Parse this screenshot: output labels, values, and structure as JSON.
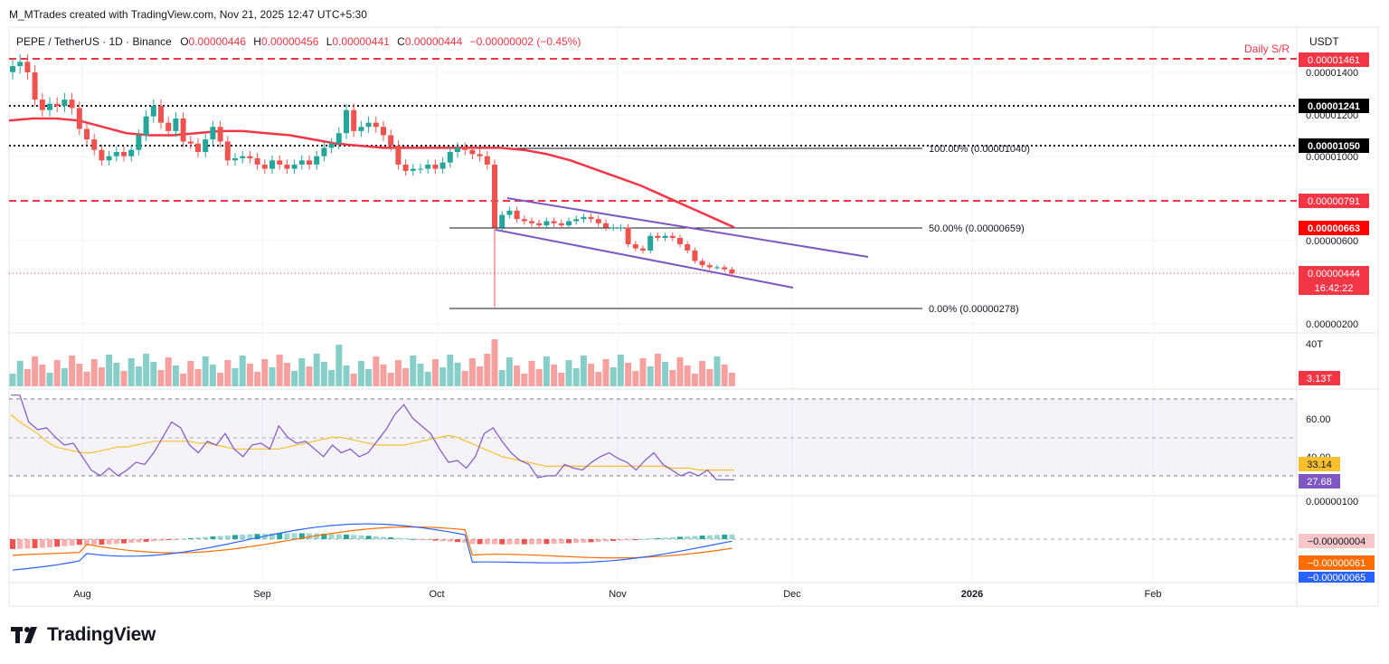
{
  "header": {
    "credit": "M_MTrades created with TradingView.com, Nov 21, 2025 12:47 UTC+5:30",
    "symbol": "PEPE / TetherUS · 1D · Binance",
    "o_label": "O",
    "o_value": "0.00000446",
    "h_label": "H",
    "h_value": "0.00000456",
    "l_label": "L",
    "l_value": "0.00000441",
    "c_label": "C",
    "c_value": "0.00000444",
    "change": "−0.00000002 (−0.45%)",
    "currency": "USDT"
  },
  "chart_data": {
    "type": "candlestick",
    "symbol": "PEPE / TetherUS",
    "interval": "1D",
    "exchange": "Binance",
    "time_axis": [
      "Aug",
      "Sep",
      "Oct",
      "Nov",
      "Dec",
      "2026",
      "Feb"
    ],
    "price_axis_ticks": [
      "0.00001400",
      "0.00001200",
      "0.00001000",
      "0.00000600",
      "0.00000200"
    ],
    "close_series_approx": [
      1.43e-05,
      1.45e-05,
      1.4e-05,
      1.27e-05,
      1.22e-05,
      1.25e-05,
      1.24e-05,
      1.27e-05,
      1.23e-05,
      1.13e-05,
      1.08e-05,
      1.03e-05,
      9.8e-06,
      1e-05,
      1.02e-05,
      1e-05,
      1.03e-05,
      1.1e-05,
      1.19e-05,
      1.24e-05,
      1.16e-05,
      1.12e-05,
      1.18e-05,
      1.07e-05,
      1.06e-05,
      1.02e-05,
      1.08e-05,
      1.14e-05,
      1.07e-05,
      9.8e-06,
      9.9e-06,
      1e-05,
      9.9e-06,
      9.6e-06,
      9.4e-06,
      9.8e-06,
      9.6e-06,
      9.4e-06,
      9.6e-06,
      9.8e-06,
      9.6e-06,
      1e-05,
      1.04e-05,
      1.06e-05,
      1.11e-05,
      1.22e-05,
      1.12e-05,
      1.14e-05,
      1.16e-05,
      1.14e-05,
      1.1e-05,
      1.05e-05,
      9.6e-06,
      9.3e-06,
      9.4e-06,
      9.4e-06,
      9.6e-06,
      9.4e-06,
      9.7e-06,
      1.02e-05,
      1.04e-05,
      1.03e-05,
      1.01e-05,
      1e-05,
      9.6e-06,
      6.6e-06,
      7.2e-06,
      7.4e-06,
      7e-06,
      6.9e-06,
      6.8e-06,
      6.7e-06,
      6.9e-06,
      6.8e-06,
      6.7e-06,
      6.9e-06,
      7e-06,
      7.1e-06,
      7e-06,
      6.8e-06,
      6.6e-06,
      6.6e-06,
      6.6e-06,
      5.8e-06,
      5.6e-06,
      5.5e-06,
      6.2e-06,
      6.1e-06,
      6.2e-06,
      6.1e-06,
      5.8e-06,
      5.5e-06,
      5e-06,
      4.8e-06,
      4.7e-06,
      4.7e-06,
      4.6e-06,
      4.4e-06
    ],
    "moving_average_approx": [
      1.17e-05,
      1.18e-05,
      1.18e-05,
      1.17e-05,
      1.14e-05,
      1.11e-05,
      1.1e-05,
      1.1e-05,
      1.11e-05,
      1.12e-05,
      1.12e-05,
      1.11e-05,
      1.1e-05,
      1.08e-05,
      1.06e-05,
      1.05e-05,
      1.04e-05,
      1.04e-05,
      1.04e-05,
      1.04e-05,
      1.04e-05,
      1.04e-05,
      1.03e-05,
      1.01e-05,
      9.8e-06,
      9.4e-06,
      9e-06,
      8.6e-06,
      8.1e-06,
      7.6e-06,
      7.1e-06,
      6.6e-06
    ],
    "horizontal_levels": [
      {
        "label": "Daily S/R",
        "value": "0.00001461",
        "style": "dashed",
        "color": "#f23645"
      },
      {
        "value": "0.00001241",
        "style": "dotted",
        "color": "#131722"
      },
      {
        "value": "0.00001050",
        "style": "dotted",
        "color": "#131722"
      },
      {
        "value": "0.00000791",
        "style": "dashed",
        "color": "#f23645"
      }
    ],
    "fibonacci": [
      {
        "label": "100.00% (0.00001040)"
      },
      {
        "label": "50.00% (0.00000659)"
      },
      {
        "label": "0.00% (0.00000278)"
      }
    ],
    "price_tags": [
      {
        "value": "0.00001461",
        "bg": "#f23645"
      },
      {
        "value": "0.00001241",
        "bg": "#000000"
      },
      {
        "value": "0.00001050",
        "bg": "#000000"
      },
      {
        "value": "0.00000791",
        "bg": "#f23645"
      },
      {
        "value": "0.00000663",
        "bg": "#ff0000"
      },
      {
        "value": "0.00000444",
        "bg": "#f23645"
      }
    ],
    "countdown": "16:42:22",
    "volume": {
      "axis_label": "40T",
      "current": "3.13T"
    },
    "rsi": {
      "ticks": [
        "60.00",
        "40.00"
      ],
      "rsi_value": "27.68",
      "signal_value": "33.14",
      "rsi_series_approx": [
        72,
        72,
        58,
        54,
        55,
        50,
        46,
        47,
        40,
        33,
        30,
        34,
        30,
        33,
        37,
        36,
        42,
        50,
        58,
        55,
        46,
        42,
        48,
        46,
        52,
        44,
        40,
        46,
        47,
        44,
        56,
        50,
        47,
        48,
        44,
        40,
        46,
        42,
        44,
        40,
        42,
        48,
        54,
        62,
        67,
        60,
        56,
        52,
        44,
        37,
        38,
        34,
        40,
        52,
        55,
        48,
        42,
        38,
        36,
        29,
        30,
        30,
        36,
        34,
        33,
        37,
        40,
        42,
        39,
        37,
        33,
        38,
        42,
        36,
        33,
        30,
        32,
        30,
        33,
        28,
        28,
        28
      ],
      "signal_series_approx": [
        62,
        58,
        55,
        52,
        48,
        45,
        44,
        43,
        42,
        42,
        43,
        44,
        45,
        45,
        46,
        47,
        48,
        48,
        48,
        48,
        48,
        47,
        47,
        46,
        45,
        44,
        44,
        44,
        44,
        44,
        44,
        45,
        46,
        47,
        48,
        49,
        50,
        50,
        49,
        48,
        47,
        46,
        46,
        46,
        46,
        47,
        48,
        49,
        50,
        51,
        50,
        48,
        46,
        44,
        42,
        40,
        39,
        38,
        37,
        36,
        35,
        35,
        35,
        35,
        35,
        35,
        35,
        35,
        35,
        35,
        35,
        35,
        35,
        35,
        34,
        34,
        34,
        33,
        33,
        33,
        33,
        33
      ]
    },
    "macd": {
      "tick": "0.00000100",
      "hist_value": "−0.00000004",
      "signal_value": "−0.00000061",
      "macd_value": "−0.00000065"
    }
  },
  "footer": {
    "brand": "TradingView"
  },
  "colors": {
    "up": "#26a69a",
    "down": "#ef5350",
    "ma": "#f23645",
    "channel": "#7e57c2",
    "rsi": "#7e57c2",
    "rsi_signal": "#f9c02d",
    "macd": "#2962ff",
    "macd_signal": "#ff6d00"
  }
}
